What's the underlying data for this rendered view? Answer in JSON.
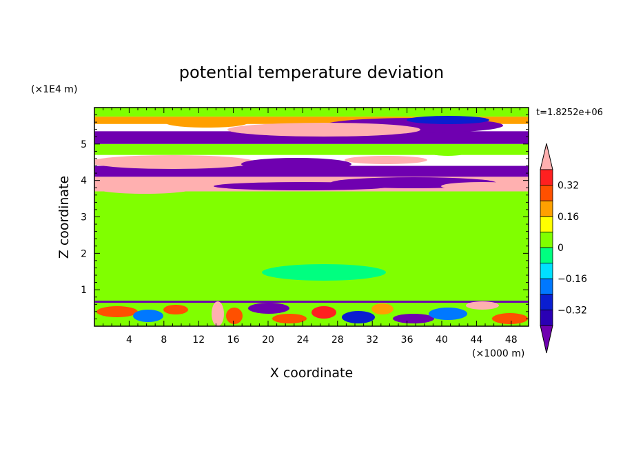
{
  "chart_data": {
    "type": "heatmap",
    "title": "potential temperature deviation",
    "xlabel": "X coordinate",
    "ylabel": "Z coordinate",
    "x_unit": "(×1000 m)",
    "y_unit": "(×1E4 m)",
    "time_label": "t=1.8252e+06",
    "xlim": [
      0,
      50
    ],
    "ylim": [
      0,
      6
    ],
    "x_ticks": [
      4,
      8,
      12,
      16,
      20,
      24,
      28,
      32,
      36,
      40,
      44,
      48
    ],
    "y_ticks": [
      1,
      2,
      3,
      4,
      5
    ],
    "colorbar": {
      "levels": [
        -0.4,
        -0.32,
        -0.24,
        -0.16,
        -0.08,
        0,
        0.08,
        0.16,
        0.24,
        0.32,
        0.4
      ],
      "labels": [
        "0.32",
        "0.16",
        "0",
        "−0.16",
        "−0.32"
      ],
      "label_values": [
        0.32,
        0.16,
        0,
        -0.16,
        -0.32
      ],
      "colors": [
        "#6f00b0",
        "#2a00b4",
        "#0a1ed0",
        "#0078ff",
        "#00e0ff",
        "#00ff80",
        "#80ff00",
        "#ffff00",
        "#ffa000",
        "#ff5000",
        "#ff2020",
        "#ffb0b0"
      ],
      "extend": "both"
    },
    "bands": [
      {
        "z_range": [
          5.75,
          6.0
        ],
        "level": 0.0
      },
      {
        "z_range": [
          5.55,
          5.75
        ],
        "level": 0.2
      },
      {
        "z_range": [
          5.0,
          5.35
        ],
        "level": -0.45
      },
      {
        "z_range": [
          4.7,
          5.0
        ],
        "level": 0.05
      },
      {
        "z_range": [
          4.1,
          4.4
        ],
        "level": -0.45
      },
      {
        "z_range": [
          3.7,
          4.1
        ],
        "level": 0.45
      },
      {
        "z_range": [
          0.7,
          3.7
        ],
        "level": 0.03
      },
      {
        "z_range": [
          0.0,
          0.7
        ],
        "level": 0.0
      }
    ]
  }
}
